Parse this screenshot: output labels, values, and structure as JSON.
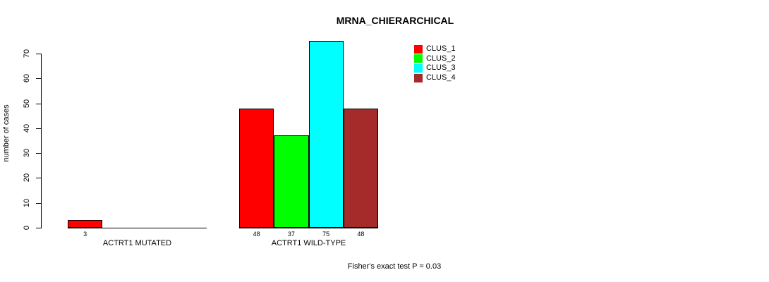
{
  "chart_data": {
    "type": "bar",
    "title": "MRNA_CHIERARCHICAL",
    "ylabel": "number of cases",
    "xlabel": "",
    "categories": [
      "ACTRT1 MUTATED",
      "ACTRT1 WILD-TYPE"
    ],
    "series": [
      {
        "name": "CLUS_1",
        "color": "#ff0000",
        "values": [
          3,
          48
        ]
      },
      {
        "name": "CLUS_2",
        "color": "#00ff00",
        "values": [
          0,
          37
        ]
      },
      {
        "name": "CLUS_3",
        "color": "#00ffff",
        "values": [
          0,
          75
        ]
      },
      {
        "name": "CLUS_4",
        "color": "#a52a2a",
        "values": [
          0,
          48
        ]
      }
    ],
    "yticks": [
      0,
      10,
      20,
      30,
      40,
      50,
      60,
      70
    ],
    "ylim": [
      0,
      70
    ],
    "grid": false,
    "legend_position": "right",
    "bar_value_labels_shown": "nonzero values only",
    "annotation": "Fisher's exact test P = 0.03"
  }
}
